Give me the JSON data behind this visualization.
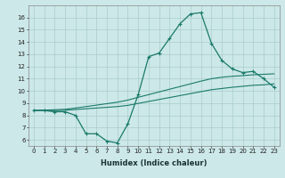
{
  "xlabel": "Humidex (Indice chaleur)",
  "ylabel": "",
  "bg_color": "#cce8e8",
  "grid_color": "#aacccc",
  "line_color": "#1a7a6a",
  "x_main": [
    0,
    1,
    2,
    3,
    4,
    5,
    6,
    7,
    8,
    9,
    10,
    11,
    12,
    13,
    14,
    15,
    16,
    17,
    18,
    19,
    20,
    21,
    22,
    23
  ],
  "y_main": [
    8.4,
    8.4,
    8.3,
    8.3,
    8.0,
    6.5,
    6.5,
    5.9,
    5.75,
    7.3,
    9.7,
    12.8,
    13.1,
    14.3,
    15.5,
    16.3,
    16.4,
    13.9,
    12.5,
    11.8,
    11.5,
    11.6,
    11.0,
    10.3
  ],
  "y_line2": [
    8.4,
    8.4,
    8.4,
    8.42,
    8.48,
    8.54,
    8.6,
    8.66,
    8.72,
    8.82,
    8.98,
    9.14,
    9.3,
    9.46,
    9.62,
    9.78,
    9.94,
    10.1,
    10.2,
    10.3,
    10.38,
    10.46,
    10.5,
    10.58
  ],
  "y_line3": [
    8.4,
    8.43,
    8.46,
    8.5,
    8.6,
    8.72,
    8.84,
    8.96,
    9.08,
    9.25,
    9.48,
    9.7,
    9.92,
    10.14,
    10.36,
    10.58,
    10.8,
    11.0,
    11.12,
    11.2,
    11.25,
    11.32,
    11.36,
    11.4
  ],
  "ylim": [
    5.5,
    17.0
  ],
  "xlim": [
    -0.5,
    23.5
  ],
  "yticks": [
    6,
    7,
    8,
    9,
    10,
    11,
    12,
    13,
    14,
    15,
    16
  ],
  "xticks": [
    0,
    1,
    2,
    3,
    4,
    5,
    6,
    7,
    8,
    9,
    10,
    11,
    12,
    13,
    14,
    15,
    16,
    17,
    18,
    19,
    20,
    21,
    22,
    23
  ],
  "tick_fontsize": 5.0,
  "xlabel_fontsize": 6.0
}
